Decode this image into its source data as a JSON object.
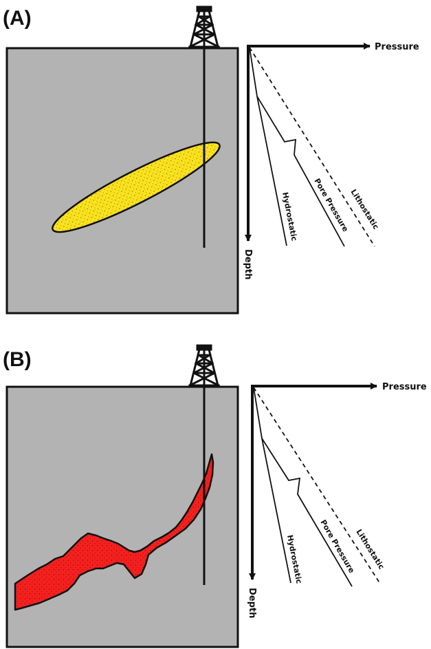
{
  "panels": [
    {
      "id": "A",
      "label": "(A)",
      "body_color": "#fae21e",
      "axes": {
        "x_label": "Pressure",
        "y_label": "Depth"
      },
      "curves": {
        "hydrostatic": "Hydrostatic",
        "pore_pressure": "Pore Pressure",
        "lithostatic": "Lithostatic"
      }
    },
    {
      "id": "B",
      "label": "(B)",
      "body_color": "#f5201e",
      "axes": {
        "x_label": "Pressure",
        "y_label": "Depth"
      },
      "curves": {
        "hydrostatic": "Hydrostatic",
        "pore_pressure": "Pore Pressure",
        "lithostatic": "Lithostatic"
      }
    }
  ],
  "colors": {
    "formation": "#b3b3b3",
    "outline": "#111111"
  }
}
